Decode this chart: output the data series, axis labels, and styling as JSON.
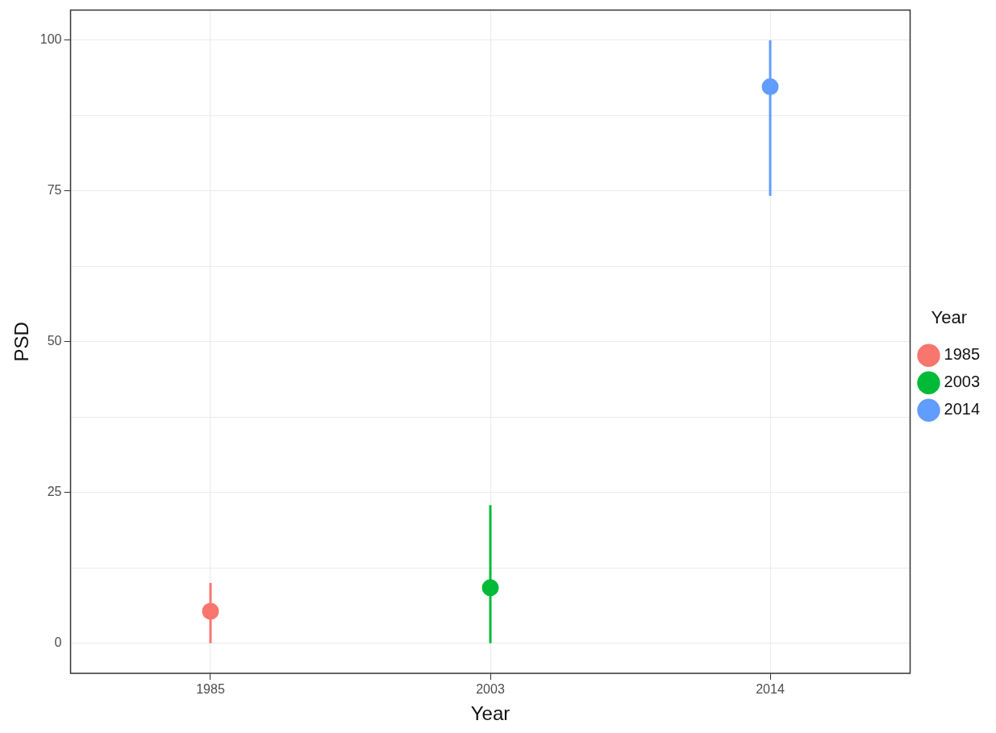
{
  "chart_data": {
    "type": "scatter",
    "xlabel": "Year",
    "ylabel": "PSD",
    "legend_title": "Year",
    "legend": "right",
    "grid": true,
    "marker": "circle",
    "categories": [
      "1985",
      "2003",
      "2014"
    ],
    "ylim": [
      -5,
      105
    ],
    "yticks": [
      0,
      {
        "value": 12.5,
        "label": null
      },
      25,
      {
        "value": 37.5,
        "label": null
      },
      50,
      {
        "value": 62.5,
        "label": null
      },
      75,
      {
        "value": 87.5,
        "label": null
      },
      100
    ],
    "series": [
      {
        "name": "1985",
        "color": "#f8766d",
        "values": [
          5.3,
          null,
          null
        ],
        "errors": [
          [
            0,
            10
          ],
          null,
          null
        ]
      },
      {
        "name": "2003",
        "color": "#00ba38",
        "values": [
          null,
          9.2,
          null
        ],
        "errors": [
          null,
          [
            0,
            22.9
          ],
          null
        ]
      },
      {
        "name": "2014",
        "color": "#619cff",
        "values": [
          null,
          null,
          92.3
        ],
        "errors": [
          null,
          null,
          [
            74.2,
            100
          ]
        ]
      }
    ]
  }
}
